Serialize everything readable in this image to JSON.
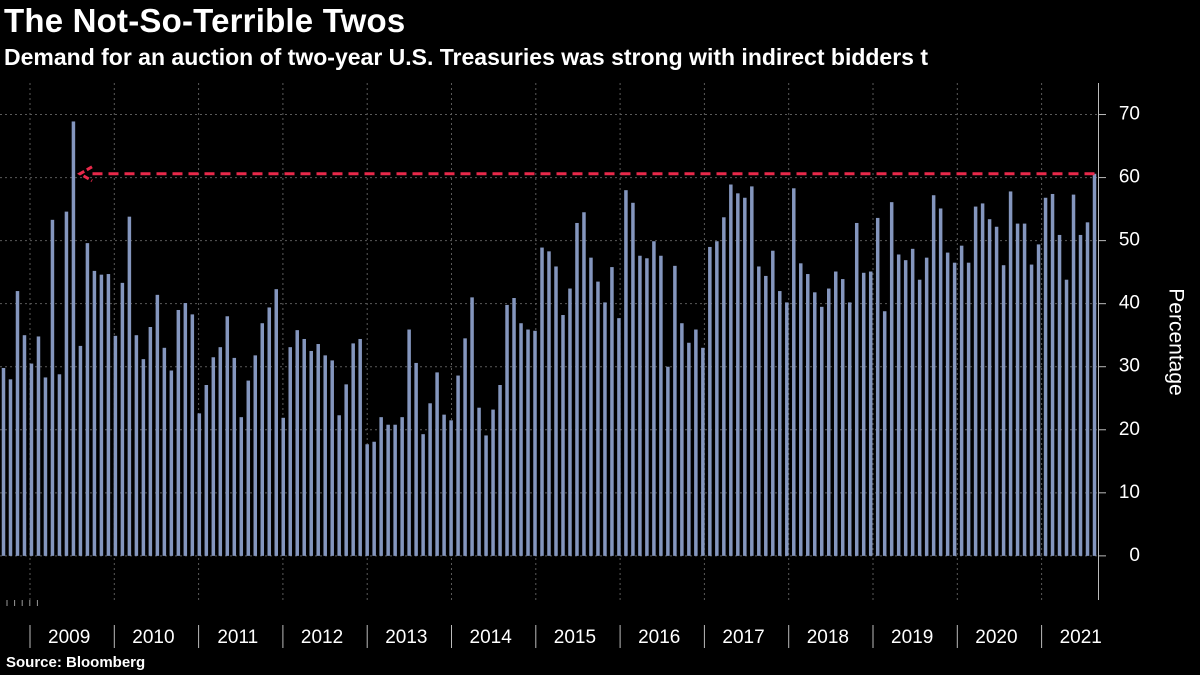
{
  "header": {
    "title": "The Not-So-Terrible Twos",
    "subtitle": "Demand for an auction of two-year U.S. Treasuries was strong with indirect bidders t"
  },
  "footer": {
    "source": "Source: Bloomberg"
  },
  "colors": {
    "bar": "#8496BE",
    "arrow": "#E8294A",
    "grid": "#5a5a5a",
    "text": "#ffffff",
    "background": "#000000"
  },
  "chart_data": {
    "type": "bar",
    "title": "The Not-So-Terrible Twos",
    "ylabel": "Percentage",
    "xlabel": "",
    "ylim": [
      -7,
      75
    ],
    "yticks": [
      0,
      10,
      20,
      30,
      40,
      50,
      60,
      70
    ],
    "y_axis_side": "right",
    "grid": true,
    "year_labels": [
      "2009",
      "2010",
      "2011",
      "2012",
      "2013",
      "2014",
      "2015",
      "2016",
      "2017",
      "2018",
      "2019",
      "2020",
      "2021"
    ],
    "series": [
      {
        "name": "Indirect bidders",
        "values": [
          29.8,
          28,
          42,
          35,
          30.5,
          34.8,
          28.3,
          53.3,
          28.8,
          54.6,
          68.9,
          33.3,
          49.6,
          45.2,
          44.6,
          44.7,
          34.9,
          43.3,
          53.8,
          35,
          31.2,
          36.3,
          41.4,
          33,
          29.4,
          39,
          40.1,
          38.3,
          22.6,
          27.1,
          31.5,
          33.1,
          38,
          31.4,
          22,
          27.8,
          31.8,
          36.9,
          39.4,
          42.3,
          21.9,
          33.1,
          35.8,
          34.4,
          32.5,
          33.6,
          31.8,
          31,
          22.3,
          27.2,
          33.7,
          34.4,
          17.7,
          18.1,
          22,
          20.8,
          20.8,
          22,
          35.9,
          30.6,
          19.3,
          24.2,
          29.1,
          22.4,
          21.5,
          28.6,
          34.5,
          41,
          23.5,
          19.1,
          23.2,
          27.1,
          39.8,
          40.9,
          36.9,
          35.9,
          35.7,
          48.9,
          48.3,
          45.9,
          38.2,
          42.4,
          52.8,
          54.5,
          47.3,
          43.5,
          40.2,
          45.8,
          37.7,
          58,
          56,
          47.6,
          47.2,
          49.9,
          47.6,
          30,
          46,
          36.9,
          33.8,
          35.9,
          33,
          49,
          49.9,
          53.7,
          58.9,
          57.5,
          56.8,
          58.6,
          45.9,
          44.4,
          48.4,
          42,
          40.2,
          58.3,
          46.4,
          44.7,
          41.8,
          39.5,
          42.4,
          45.1,
          43.9,
          40.2,
          52.8,
          44.9,
          45.1,
          53.6,
          38.8,
          56.1,
          47.8,
          46.9,
          48.7,
          43.8,
          47.3,
          57.2,
          55.1,
          48.1,
          46.5,
          49.2,
          46.5,
          55.4,
          55.9,
          53.4,
          52.2,
          46.1,
          57.8,
          52.7,
          52.7,
          46.2,
          49.4,
          56.8,
          57.4,
          50.9,
          43.8,
          57.3,
          50.9,
          52.9,
          60.6
        ]
      }
    ],
    "annotations": [
      {
        "type": "dashed-arrow",
        "from_value": 60.6,
        "to_value": 60.6,
        "direction": "left",
        "note": "latest auction compared with 2009 peak"
      }
    ]
  }
}
